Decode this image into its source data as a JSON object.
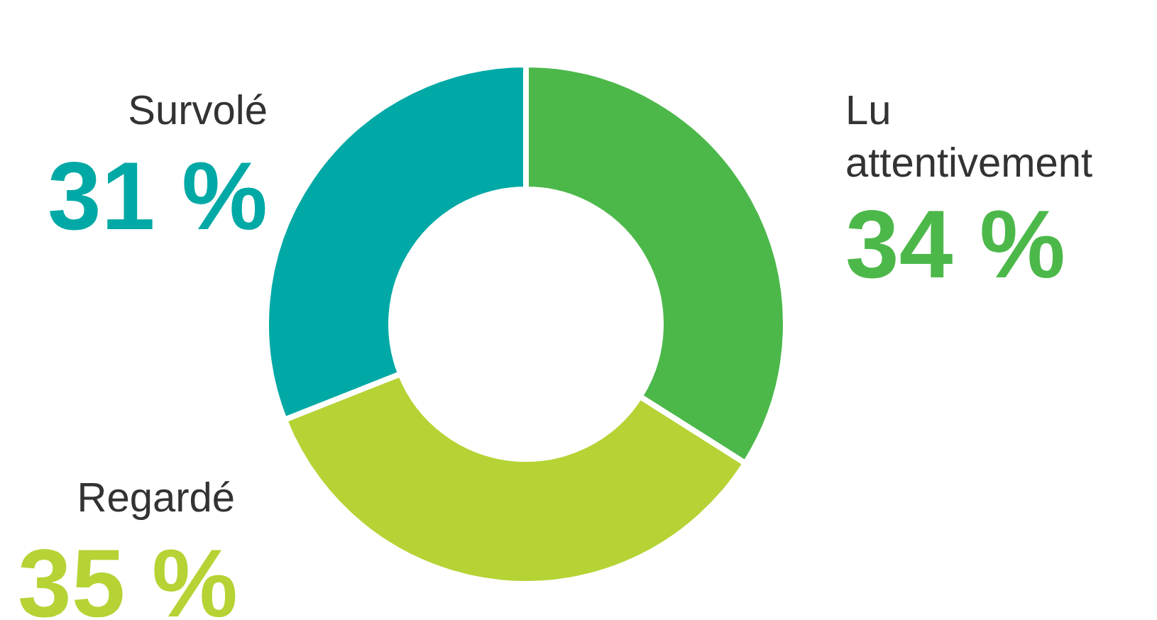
{
  "chart_data": {
    "type": "donut",
    "categories": [
      "Lu attentivement",
      "Regardé",
      "Survolé"
    ],
    "values": [
      34,
      35,
      31
    ],
    "value_labels": [
      "34 %",
      "35 %",
      "31 %"
    ],
    "colors": [
      "#4cb84a",
      "#b5d334",
      "#00a9a5"
    ]
  }
}
